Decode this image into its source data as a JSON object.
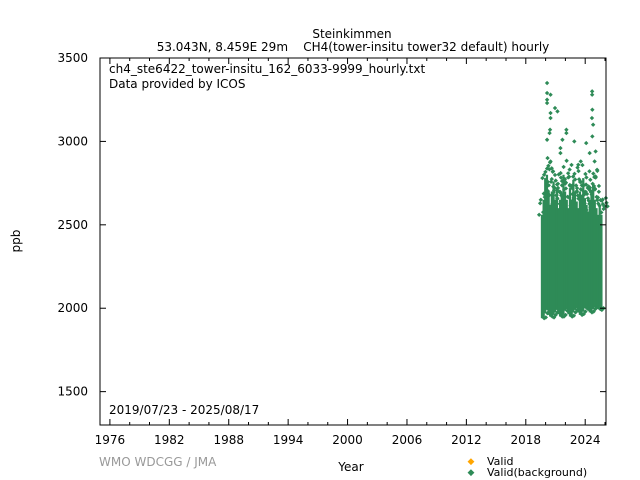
{
  "chart_data": {
    "type": "scatter",
    "title": "Steinkimmen",
    "subtitle": "53.043N, 8.459E 29m    CH4(tower-insitu tower32 default) hourly",
    "file_label": "ch4_ste6422_tower-insitu_162_6033-9999_hourly.txt",
    "provider_label": "Data provided by ICOS",
    "date_range": "2019/07/23 - 2025/08/17",
    "credit": "WMO WDCGG / JMA",
    "xlabel": "Year",
    "ylabel": "ppb",
    "xlim": [
      1975,
      2026.1
    ],
    "ylim": [
      1300,
      3500
    ],
    "xticks": [
      1976,
      1982,
      1988,
      1994,
      2000,
      2006,
      2012,
      2018,
      2024
    ],
    "yticks": [
      1500,
      2000,
      2500,
      3000,
      3500
    ],
    "legend": {
      "placement": "bottom-right",
      "entries": [
        {
          "label": "Valid",
          "color": "#ffa500"
        },
        {
          "label": "Valid(background)",
          "color": "#2e8b57"
        }
      ]
    },
    "series": [
      {
        "name": "Valid(background)",
        "color": "#2e8b57",
        "bins_note": "dense range per ~2 month bin: [year, min, dense_top]",
        "bins": [
          [
            2019.55,
            1940,
            2560
          ],
          [
            2019.72,
            1945,
            2650
          ],
          [
            2019.88,
            1970,
            2780
          ],
          [
            2020.05,
            1990,
            2800
          ],
          [
            2020.22,
            1960,
            2700
          ],
          [
            2020.38,
            1950,
            2620
          ],
          [
            2020.55,
            1945,
            2700
          ],
          [
            2020.72,
            1960,
            2760
          ],
          [
            2020.88,
            1975,
            2650
          ],
          [
            2021.05,
            1990,
            2720
          ],
          [
            2021.22,
            1965,
            2600
          ],
          [
            2021.38,
            1950,
            2650
          ],
          [
            2021.55,
            1950,
            2690
          ],
          [
            2021.72,
            1960,
            2800
          ],
          [
            2021.88,
            1985,
            2700
          ],
          [
            2022.05,
            1995,
            2650
          ],
          [
            2022.22,
            1965,
            2600
          ],
          [
            2022.38,
            1950,
            2720
          ],
          [
            2022.55,
            1955,
            2650
          ],
          [
            2022.72,
            1975,
            2770
          ],
          [
            2022.88,
            1990,
            2700
          ],
          [
            2023.05,
            2000,
            2640
          ],
          [
            2023.22,
            1975,
            2600
          ],
          [
            2023.38,
            1960,
            2700
          ],
          [
            2023.55,
            1965,
            2680
          ],
          [
            2023.72,
            1980,
            2780
          ],
          [
            2023.88,
            2000,
            2660
          ],
          [
            2024.05,
            2005,
            2620
          ],
          [
            2024.22,
            1985,
            2580
          ],
          [
            2024.38,
            1975,
            2650
          ],
          [
            2024.55,
            1980,
            2700
          ],
          [
            2024.72,
            1995,
            2740
          ],
          [
            2024.88,
            2005,
            2650
          ],
          [
            2025.05,
            2010,
            2600
          ],
          [
            2025.22,
            1995,
            2560
          ],
          [
            2025.38,
            1990,
            2610
          ],
          [
            2025.55,
            2000,
            2560
          ]
        ],
        "outliers": [
          [
            2020.15,
            3350
          ],
          [
            2020.15,
            3290
          ],
          [
            2020.15,
            3250
          ],
          [
            2020.15,
            3230
          ],
          [
            2020.5,
            3280
          ],
          [
            2020.5,
            3170
          ],
          [
            2020.5,
            3140
          ],
          [
            2020.45,
            3070
          ],
          [
            2020.4,
            3050
          ],
          [
            2020.15,
            3010
          ],
          [
            2020.95,
            3200
          ],
          [
            2021.2,
            3180
          ],
          [
            2020.2,
            2900
          ],
          [
            2020.5,
            2880
          ],
          [
            2021.5,
            2960
          ],
          [
            2021.7,
            3010
          ],
          [
            2021.5,
            2930
          ],
          [
            2022.1,
            3070
          ],
          [
            2022.1,
            3050
          ],
          [
            2022.9,
            3000
          ],
          [
            2023.3,
            2860
          ],
          [
            2023.55,
            2880
          ],
          [
            2024.1,
            2990
          ],
          [
            2024.45,
            2930
          ],
          [
            2024.7,
            3300
          ],
          [
            2024.7,
            3280
          ],
          [
            2024.72,
            3190
          ],
          [
            2024.68,
            3140
          ],
          [
            2024.8,
            3100
          ],
          [
            2024.72,
            3030
          ],
          [
            2025.05,
            2940
          ],
          [
            2024.95,
            2880
          ],
          [
            2025.2,
            2830
          ],
          [
            2025.05,
            2790
          ]
        ]
      }
    ]
  }
}
